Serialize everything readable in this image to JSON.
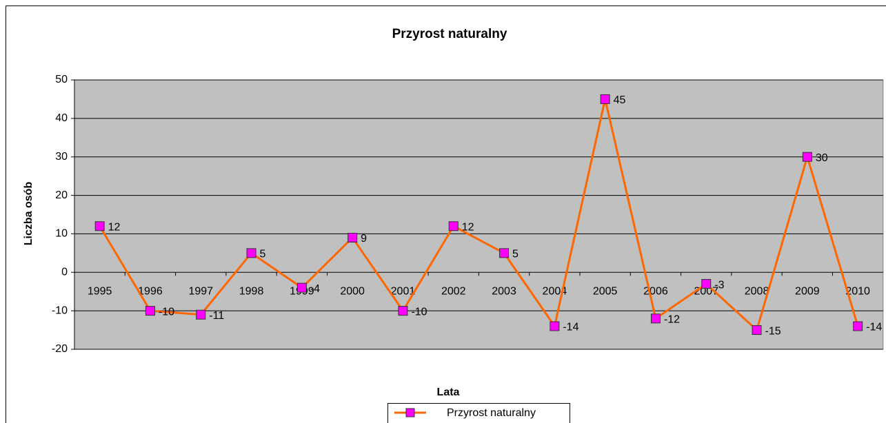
{
  "chart_data": {
    "type": "line",
    "title": "Przyrost naturalny",
    "x_label": "Lata",
    "y_label": "Liczba osób",
    "categories": [
      "1995",
      "1996",
      "1997",
      "1998",
      "1999",
      "2000",
      "2001",
      "2002",
      "2003",
      "2004",
      "2005",
      "2006",
      "2007",
      "2008",
      "2009",
      "2010"
    ],
    "series": [
      {
        "name": "Przyrost naturalny",
        "color": "#ff6600",
        "marker_color": "#ff00ff",
        "values": [
          12,
          -10,
          -11,
          5,
          -4,
          9,
          -10,
          12,
          5,
          -14,
          45,
          -12,
          -3,
          -15,
          30,
          -14
        ]
      }
    ],
    "ylim": [
      -20,
      50
    ],
    "yticks": [
      -20,
      -10,
      0,
      10,
      20,
      30,
      40,
      50
    ],
    "grid": true,
    "legend": "bottom"
  }
}
